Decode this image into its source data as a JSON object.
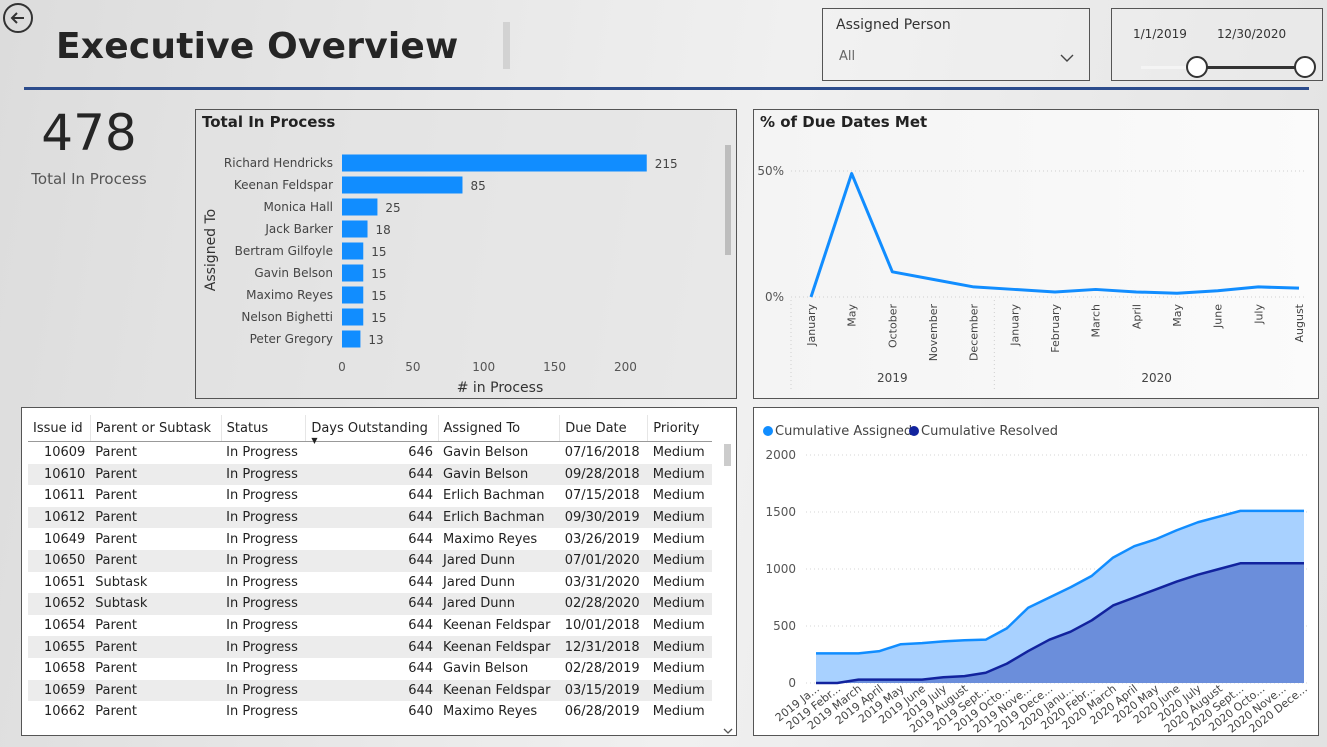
{
  "header": {
    "title": "Executive Overview"
  },
  "slicers": {
    "person": {
      "label": "Assigned Person",
      "value": "All"
    },
    "date": {
      "start": "1/1/2019",
      "end": "12/30/2020",
      "start_level": 0.0,
      "end_level": 1.0
    }
  },
  "kpi": {
    "value": "478",
    "label": "Total In Process"
  },
  "bar_chart": {
    "title": "Total In Process",
    "ylabel": "Assigned To",
    "xlabel": "# in Process",
    "color": "#118dff"
  },
  "due_chart": {
    "title": "% of Due Dates Met",
    "color": "#118dff"
  },
  "cum_chart": {
    "legend": [
      "Cumulative Assigned",
      "Cumulative Resolved"
    ],
    "colors": {
      "assigned": "#118dff",
      "assigned_fill": "#a8d1ff",
      "resolved": "#12239e",
      "resolved_fill": "#6b8edb"
    }
  },
  "chart_data": [
    {
      "type": "bar",
      "orientation": "horizontal",
      "title": "Total In Process",
      "ylabel": "Assigned To",
      "xlabel": "# in Process",
      "categories": [
        "Richard Hendricks",
        "Keenan Feldspar",
        "Monica Hall",
        "Jack Barker",
        "Bertram Gilfoyle",
        "Gavin Belson",
        "Maximo Reyes",
        "Nelson Bighetti",
        "Peter Gregory"
      ],
      "values": [
        215,
        85,
        25,
        18,
        15,
        15,
        15,
        15,
        13
      ],
      "xticks": [
        "0",
        "50",
        "100",
        "150",
        "200"
      ],
      "xlim": [
        0,
        230
      ],
      "data_labels": true
    },
    {
      "type": "line",
      "title": "% of Due Dates Met",
      "x": [
        "January",
        "May",
        "October",
        "November",
        "December",
        "January",
        "February",
        "March",
        "April",
        "May",
        "June",
        "July",
        "August"
      ],
      "x_groups": [
        {
          "label": "2019",
          "count": 5
        },
        {
          "label": "2020",
          "count": 8
        }
      ],
      "values": [
        0,
        49,
        10,
        7,
        4,
        3,
        2,
        3,
        2,
        1.5,
        2.5,
        4,
        3.5
      ],
      "yticks": [
        "0%",
        "50%"
      ],
      "ylim": [
        0,
        50
      ],
      "grid": true
    },
    {
      "type": "area",
      "legend": [
        "Cumulative Assigned",
        "Cumulative Resolved"
      ],
      "legend_position": "top-left",
      "x": [
        "2019 January",
        "2019 February",
        "2019 March",
        "2019 April",
        "2019 May",
        "2019 June",
        "2019 July",
        "2019 August",
        "2019 September",
        "2019 October",
        "2019 November",
        "2019 December",
        "2020 January",
        "2020 February",
        "2020 March",
        "2020 April",
        "2020 May",
        "2020 June",
        "2020 July",
        "2020 August",
        "2020 September",
        "2020 October",
        "2020 November",
        "2020 December"
      ],
      "x_tick_labels": [
        "2019 Ja...",
        "2019 Febr...",
        "2019 March",
        "2019 April",
        "2019 May",
        "2019 June",
        "2019 July",
        "2019 August",
        "2019 Sept...",
        "2019 Octo...",
        "2019 Nove...",
        "2019 Dece...",
        "2020 Janu...",
        "2020 Febr...",
        "2020 March",
        "2020 April",
        "2020 May",
        "2020 June",
        "2020 July",
        "2020 August",
        "2020 Sept...",
        "2020 Octo...",
        "2020 Nove...",
        "2020 Dece..."
      ],
      "series": [
        {
          "name": "Cumulative Assigned",
          "values": [
            260,
            260,
            260,
            280,
            340,
            350,
            365,
            375,
            380,
            480,
            660,
            750,
            840,
            940,
            1100,
            1200,
            1260,
            1340,
            1410,
            1460,
            1510,
            1510,
            1510,
            1510
          ]
        },
        {
          "name": "Cumulative Resolved",
          "values": [
            0,
            0,
            30,
            30,
            30,
            30,
            50,
            60,
            90,
            170,
            280,
            380,
            450,
            550,
            680,
            750,
            820,
            890,
            950,
            1000,
            1050,
            1050,
            1050,
            1050
          ]
        }
      ],
      "yticks": [
        "0",
        "500",
        "1000",
        "1500",
        "2000"
      ],
      "ylim": [
        0,
        2000
      ],
      "grid": true
    }
  ],
  "table": {
    "columns": [
      "Issue id",
      "Parent or Subtask",
      "Status",
      "Days Outstanding",
      "Assigned To",
      "Due Date",
      "Priority"
    ],
    "sort_column": "Days Outstanding",
    "rows": [
      [
        "10609",
        "Parent",
        "In Progress",
        "646",
        "Gavin Belson",
        "07/16/2018",
        "Medium"
      ],
      [
        "10610",
        "Parent",
        "In Progress",
        "644",
        "Gavin Belson",
        "09/28/2018",
        "Medium"
      ],
      [
        "10611",
        "Parent",
        "In Progress",
        "644",
        "Erlich Bachman",
        "07/15/2018",
        "Medium"
      ],
      [
        "10612",
        "Parent",
        "In Progress",
        "644",
        "Erlich Bachman",
        "09/30/2019",
        "Medium"
      ],
      [
        "10649",
        "Parent",
        "In Progress",
        "644",
        "Maximo Reyes",
        "03/26/2019",
        "Medium"
      ],
      [
        "10650",
        "Parent",
        "In Progress",
        "644",
        "Jared Dunn",
        "07/01/2020",
        "Medium"
      ],
      [
        "10651",
        "Subtask",
        "In Progress",
        "644",
        "Jared Dunn",
        "03/31/2020",
        "Medium"
      ],
      [
        "10652",
        "Subtask",
        "In Progress",
        "644",
        "Jared Dunn",
        "02/28/2020",
        "Medium"
      ],
      [
        "10654",
        "Parent",
        "In Progress",
        "644",
        "Keenan Feldspar",
        "10/01/2018",
        "Medium"
      ],
      [
        "10655",
        "Parent",
        "In Progress",
        "644",
        "Keenan Feldspar",
        "12/31/2018",
        "Medium"
      ],
      [
        "10658",
        "Parent",
        "In Progress",
        "644",
        "Gavin Belson",
        "02/28/2019",
        "Medium"
      ],
      [
        "10659",
        "Parent",
        "In Progress",
        "644",
        "Keenan Feldspar",
        "03/15/2019",
        "Medium"
      ],
      [
        "10662",
        "Parent",
        "In Progress",
        "640",
        "Maximo Reyes",
        "06/28/2019",
        "Medium"
      ]
    ]
  }
}
